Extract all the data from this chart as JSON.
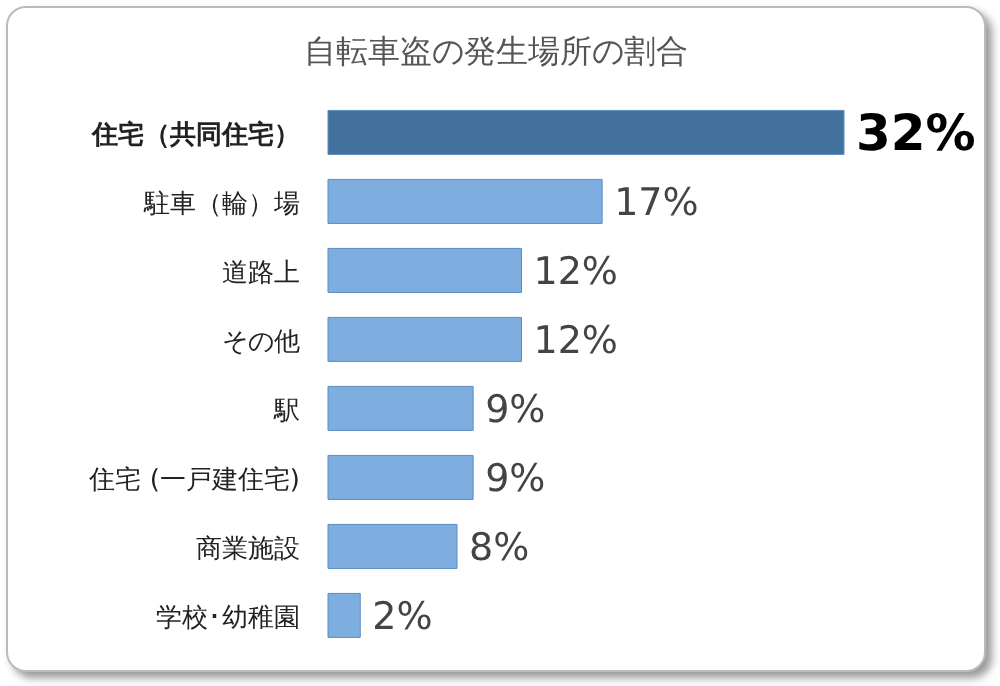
{
  "chart_data": {
    "type": "bar",
    "orientation": "horizontal",
    "title": "自転車盗の発生場所の割合",
    "categories": [
      "住宅（共同住宅）",
      "駐車（輪）場",
      "道路上",
      "その他",
      "駅",
      "住宅 (一戸建住宅)",
      "商業施設",
      "学校･幼稚園"
    ],
    "values": [
      32,
      17,
      12,
      12,
      9,
      9,
      8,
      2
    ],
    "value_labels": [
      "32%",
      "17%",
      "12%",
      "12%",
      "9%",
      "9%",
      "8%",
      "2%"
    ],
    "colors": [
      "#41719c",
      "#7eaee0",
      "#7eaee0",
      "#7eaee0",
      "#7eaee0",
      "#7eaee0",
      "#7eaee0",
      "#7eaee0"
    ],
    "grid": false,
    "legend": false
  }
}
